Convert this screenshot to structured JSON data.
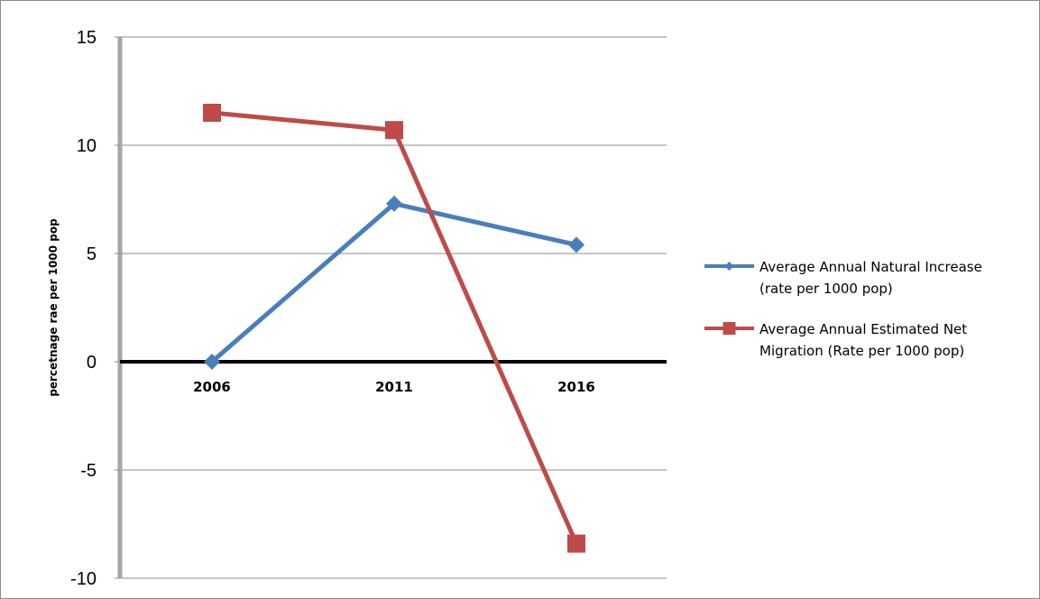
{
  "chart_data": {
    "type": "line",
    "categories": [
      "2006",
      "2011",
      "2016"
    ],
    "series": [
      {
        "name": "Average Annual Natural Increase (rate per 1000 pop)",
        "name_lines": [
          "Average Annual Natural Increase",
          "(rate per 1000 pop)"
        ],
        "values": [
          0,
          7.3,
          5.4
        ],
        "color": "#4a7ebb",
        "marker": "diamond"
      },
      {
        "name": "Average Annual Estimated Net Migration (Rate per 1000 pop)",
        "name_lines": [
          "Average Annual Estimated Net",
          "Migration (Rate per 1000 pop)"
        ],
        "values": [
          11.5,
          10.7,
          -8.4
        ],
        "color": "#be4b48",
        "marker": "square"
      }
    ],
    "title": "",
    "xlabel": "",
    "ylabel": "percetnage rae per 1000 pop",
    "ylim": [
      -10,
      15
    ],
    "yticks": [
      -10,
      -5,
      0,
      5,
      10,
      15
    ],
    "grid": true,
    "legend_position": "right"
  }
}
